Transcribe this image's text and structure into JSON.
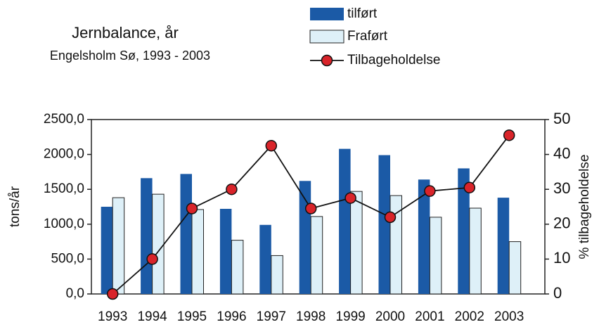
{
  "chart_data": {
    "type": "bar_line",
    "title": "Jernbalance, år",
    "subtitle": "Engelsholm Sø, 1993 - 2003",
    "y_label": "tons/år",
    "y2_label": "% tilbageholdelse",
    "categories": [
      "1993",
      "1994",
      "1995",
      "1996",
      "1997",
      "1998",
      "1999",
      "2000",
      "2001",
      "2002",
      "2003"
    ],
    "series": [
      {
        "name": "tilført",
        "type": "bar",
        "color": "#1b5aa6",
        "values": [
          1250,
          1660,
          1720,
          1220,
          990,
          1620,
          2080,
          1990,
          1640,
          1800,
          1380
        ]
      },
      {
        "name": "Fraført",
        "type": "bar",
        "color": "#def0f8",
        "values": [
          1380,
          1430,
          1210,
          770,
          550,
          1110,
          1470,
          1410,
          1100,
          1230,
          750
        ]
      },
      {
        "name": "Tilbageholdelse",
        "type": "line",
        "axis": "y2",
        "color": "#d9242a",
        "values": [
          0,
          10,
          24.5,
          30,
          42.5,
          24.5,
          27.5,
          22,
          29.5,
          30.5,
          45.5
        ]
      }
    ],
    "ylim": [
      0,
      2500
    ],
    "yticks": [
      {
        "value": 0,
        "label": "0,0"
      },
      {
        "value": 500,
        "label": "500,0"
      },
      {
        "value": 1000,
        "label": "1000,0"
      },
      {
        "value": 1500,
        "label": "1500,0"
      },
      {
        "value": 2000,
        "label": "2000,0"
      },
      {
        "value": 2500,
        "label": "2500,0"
      }
    ],
    "y2lim": [
      0,
      50
    ],
    "y2ticks": [
      0,
      10,
      20,
      30,
      40,
      50
    ]
  }
}
